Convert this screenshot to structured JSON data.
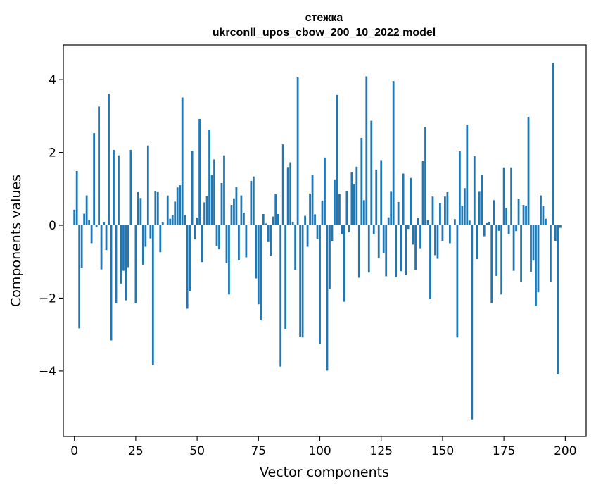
{
  "chart_data": {
    "type": "bar",
    "title": "стежка\nukrconll_upos_cbow_200_10_2022 model",
    "xlabel": "Vector components",
    "ylabel": "Components values",
    "xlim": [
      -4.5,
      208.5
    ],
    "ylim": [
      -5.8,
      4.95
    ],
    "xticks": [
      0,
      25,
      50,
      75,
      100,
      125,
      150,
      175,
      200
    ],
    "yticks": [
      -4,
      -2,
      0,
      2,
      4
    ],
    "grid": false,
    "legend": "none",
    "bar_color": "#1f77b4",
    "values": [
      0.43,
      1.49,
      -2.83,
      -1.17,
      0.32,
      0.82,
      0.15,
      -0.49,
      2.53,
      -0.05,
      3.26,
      -1.21,
      0.08,
      -0.68,
      3.61,
      -3.16,
      2.07,
      -2.14,
      1.92,
      -1.6,
      -1.25,
      -2.06,
      -1.15,
      2.07,
      0.0,
      -2.14,
      0.91,
      0.75,
      -1.08,
      -0.59,
      2.19,
      -0.36,
      -3.83,
      0.93,
      0.91,
      -0.74,
      0.08,
      0.0,
      0.82,
      0.18,
      0.28,
      0.65,
      1.04,
      1.1,
      3.51,
      0.28,
      -2.29,
      -1.8,
      2.05,
      -0.39,
      0.21,
      2.92,
      -1.01,
      0.63,
      0.8,
      2.63,
      1.38,
      1.81,
      -0.57,
      -0.66,
      1.16,
      1.92,
      -1.04,
      -1.9,
      0.56,
      0.74,
      1.05,
      -0.96,
      0.82,
      0.35,
      -0.88,
      0.02,
      1.22,
      1.34,
      -1.46,
      -2.17,
      -2.61,
      0.31,
      0.05,
      -0.46,
      -0.83,
      0.24,
      0.85,
      0.31,
      -3.88,
      2.22,
      -2.85,
      1.6,
      1.73,
      0.09,
      -1.23,
      4.06,
      -3.06,
      -3.08,
      0.26,
      -0.59,
      0.87,
      1.38,
      0.3,
      -0.37,
      -3.26,
      0.68,
      1.86,
      -3.99,
      -1.75,
      -0.44,
      1.26,
      3.58,
      0.86,
      -0.25,
      -2.1,
      0.94,
      -0.19,
      1.45,
      1.12,
      1.61,
      -1.44,
      2.4,
      0.69,
      4.09,
      -1.3,
      2.87,
      -0.25,
      1.53,
      -0.9,
      1.79,
      -0.77,
      -1.4,
      0.22,
      0.92,
      3.96,
      -1.42,
      0.64,
      -1.26,
      1.42,
      -1.37,
      -0.1,
      1.3,
      -0.53,
      -1.23,
      0.2,
      -0.63,
      1.76,
      2.69,
      0.14,
      -2.02,
      0.79,
      -0.82,
      -0.92,
      0.61,
      -0.43,
      0.79,
      0.91,
      -0.49,
      0.0,
      0.17,
      -3.08,
      2.03,
      0.54,
      1.02,
      2.76,
      0.13,
      -5.33,
      1.9,
      -0.93,
      0.92,
      1.39,
      -0.3,
      0.06,
      0.09,
      -2.13,
      0.69,
      -1.39,
      -0.15,
      -1.9,
      1.59,
      0.47,
      -0.24,
      1.59,
      -1.25,
      -0.16,
      0.73,
      -1.55,
      0.56,
      0.54,
      2.98,
      -1.28,
      -0.97,
      -2.22,
      -1.84,
      0.82,
      0.53,
      0.18,
      0.0,
      -1.55,
      4.46,
      -0.43,
      -4.08,
      -0.07,
      0.0
    ]
  }
}
